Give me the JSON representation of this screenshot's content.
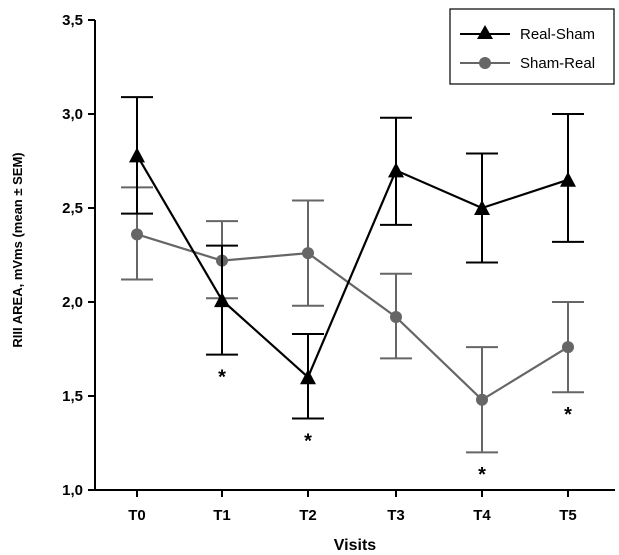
{
  "chart_data": {
    "type": "line",
    "xlabel": "Visits",
    "ylabel": "RIII AREA, mVms (mean ± SEM)",
    "categories": [
      "T0",
      "T1",
      "T2",
      "T3",
      "T4",
      "T5"
    ],
    "ylim": [
      1.0,
      3.5
    ],
    "yticks": [
      "1,0",
      "1,5",
      "2,0",
      "2,5",
      "3,0",
      "3,5"
    ],
    "ytick_values": [
      1.0,
      1.5,
      2.0,
      2.5,
      3.0,
      3.5
    ],
    "grid": false,
    "legend_position": "top-right",
    "series": [
      {
        "name": "Real-Sham",
        "marker": "triangle",
        "color": "#000000",
        "values": [
          2.78,
          2.01,
          1.6,
          2.7,
          2.5,
          2.65
        ],
        "err_low": [
          2.47,
          1.72,
          1.38,
          2.41,
          2.21,
          2.32
        ],
        "err_high": [
          3.09,
          2.3,
          1.83,
          2.98,
          2.79,
          3.0
        ]
      },
      {
        "name": "Sham-Real",
        "marker": "circle",
        "color": "#666666",
        "values": [
          2.36,
          2.22,
          2.26,
          1.92,
          1.48,
          1.76
        ],
        "err_low": [
          2.12,
          2.02,
          1.98,
          1.7,
          1.2,
          1.52
        ],
        "err_high": [
          2.61,
          2.43,
          2.54,
          2.15,
          1.76,
          2.0
        ]
      }
    ],
    "annotations": [
      {
        "category": "T1",
        "text": "*",
        "y": 1.62
      },
      {
        "category": "T2",
        "text": "*",
        "y": 1.28
      },
      {
        "category": "T4",
        "text": "*",
        "y": 1.1
      },
      {
        "category": "T5",
        "text": "*",
        "y": 1.42
      }
    ]
  }
}
